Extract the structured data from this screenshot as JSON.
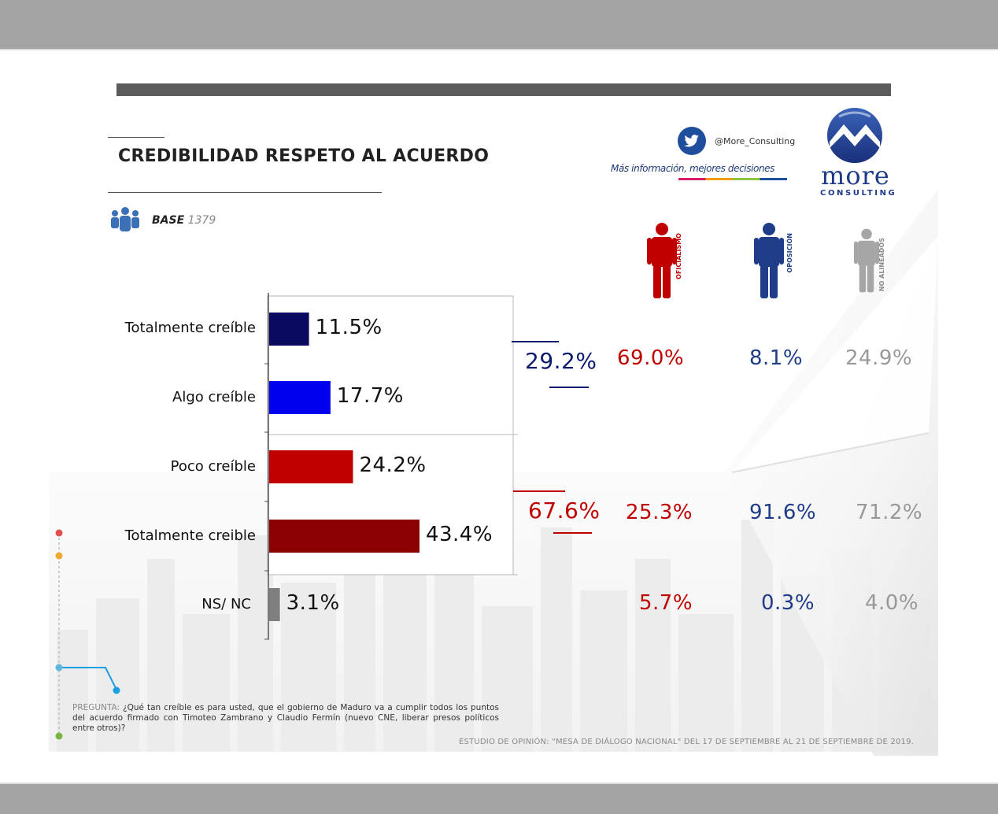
{
  "title": "CREDIBILIDAD RESPETO AL ACUERDO",
  "base": {
    "label": "BASE",
    "value": "1379"
  },
  "brand": {
    "handle": "@More_Consulting",
    "slogan": "Más información, mejores decisiones",
    "logo_word": "more",
    "logo_sub": "CONSULTING"
  },
  "segments": [
    {
      "name": "OFICIALISMO",
      "color": "#c00000"
    },
    {
      "name": "OPOSICIÓN",
      "color": "#1f3c88"
    },
    {
      "name": "NO ALINEADOS",
      "color": "#999999"
    }
  ],
  "chart_data": {
    "type": "bar",
    "orientation": "horizontal",
    "categories": [
      "Totalmente creíble",
      "Algo creíble",
      "Poco creíble",
      "Totalmente creible",
      "NS/ NC"
    ],
    "values": [
      11.5,
      17.7,
      24.2,
      43.4,
      3.1
    ],
    "value_labels": [
      "11.5%",
      "17.7%",
      "24.2%",
      "43.4%",
      "3.1%"
    ],
    "bar_colors": [
      "#0a0a5e",
      "#0000ee",
      "#c00000",
      "#8b0000",
      "#7f7f7f"
    ],
    "xlim": [
      0,
      100
    ],
    "groups": [
      {
        "total": "29.2%",
        "color": "#0a1a6e",
        "segment_values": [
          "69.0%",
          "8.1%",
          "24.9%"
        ]
      },
      {
        "total": "67.6%",
        "color": "#c00000",
        "segment_values": [
          "25.3%",
          "91.6%",
          "71.2%"
        ]
      },
      {
        "total": "",
        "color": "#c00000",
        "segment_values": [
          "5.7%",
          "0.3%",
          "4.0%"
        ]
      }
    ]
  },
  "footer": {
    "question_label": "PREGUNTA:",
    "question": "¿Qué tan creíble es para usted, que el gobierno de Maduro va a cumplir todos los puntos del acuerdo firmado con Timoteo Zambrano y Claudio Fermín (nuevo CNE, liberar presos políticos entre otros)?",
    "study": "ESTUDIO DE OPINIÓN: \"MESA DE DIÁLOGO NACIONAL\" DEL 17 DE SEPTIEMBRE AL 21 DE SEPTIEMBRE DE 2019."
  }
}
